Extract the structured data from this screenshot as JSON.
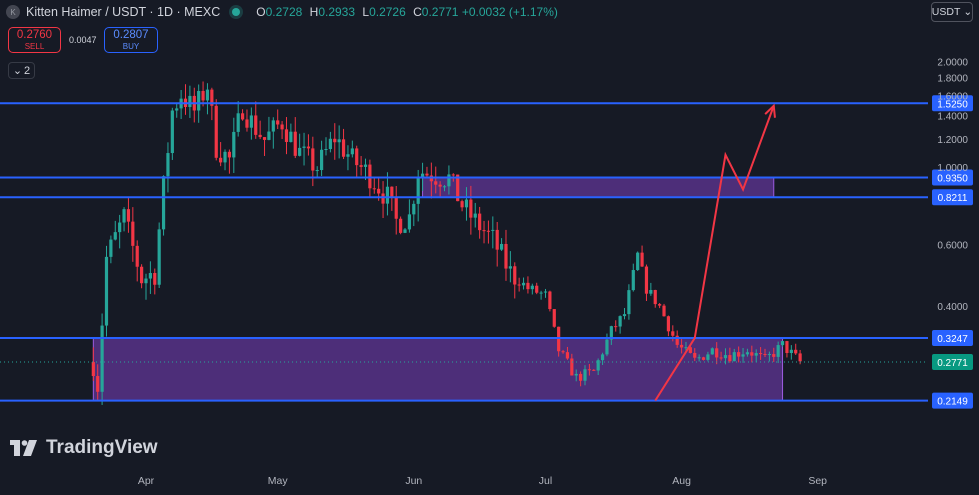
{
  "header": {
    "symbol_icon_letter": "K",
    "title": "Kitten Haimer / USDT · 1D · MEXC",
    "ohlc": {
      "o_label": "O",
      "o": "0.2728",
      "h_label": "H",
      "h": "0.2933",
      "l_label": "L",
      "l": "0.2726",
      "c_label": "C",
      "c": "0.2771",
      "change": "+0.0032 (+1.17%)"
    },
    "status_color": "#26a69a"
  },
  "trade": {
    "sell_price": "0.2760",
    "sell_label": "SELL",
    "spread": "0.0047",
    "buy_price": "0.2807",
    "buy_label": "BUY"
  },
  "indicators": {
    "count": "2"
  },
  "currency": {
    "label": "USDT"
  },
  "branding": {
    "name": "TradingView"
  },
  "colors": {
    "up": "#26a69a",
    "down": "#f23645",
    "line": "#2962ff",
    "zone": "#7b3fbf",
    "arrow": "#f23645",
    "background": "#161a25"
  },
  "chart_data": {
    "type": "candlestick",
    "y_scale": "log",
    "ylim": [
      0.195,
      2.1
    ],
    "y_ticks": [
      "2.0000",
      "1.8000",
      "1.6000",
      "1.4000",
      "1.2000",
      "1.0000",
      "0.6000",
      "0.4000"
    ],
    "x_ticks": [
      {
        "label": "Apr",
        "date": "2024-04-01"
      },
      {
        "label": "May",
        "date": "2024-05-01"
      },
      {
        "label": "Jun",
        "date": "2024-06-01"
      },
      {
        "label": "Jul",
        "date": "2024-07-01"
      },
      {
        "label": "Aug",
        "date": "2024-08-01"
      },
      {
        "label": "Sep",
        "date": "2024-09-01"
      }
    ],
    "first_date": "2024-03-20",
    "last_date": "2024-08-28",
    "horizontal_lines": [
      {
        "price": 1.525,
        "label": "1.5250"
      },
      {
        "price": 0.935,
        "label": "0.9350"
      },
      {
        "price": 0.8211,
        "label": "0.8211"
      },
      {
        "price": 0.3247,
        "label": "0.3247"
      },
      {
        "price": 0.2149,
        "label": "0.2149"
      }
    ],
    "current_price": {
      "price": 0.2771,
      "label": "0.2771"
    },
    "zones": [
      {
        "from_date": "2024-03-20",
        "to_date": "2024-08-24",
        "low": 0.2149,
        "high": 0.3247
      },
      {
        "from_date": "2024-06-03",
        "to_date": "2024-08-22",
        "low": 0.8211,
        "high": 0.935
      }
    ],
    "projection_path": [
      {
        "date": "2024-07-26",
        "price": 0.2149
      },
      {
        "date": "2024-08-04",
        "price": 0.3247
      },
      {
        "date": "2024-08-11",
        "price": 1.086
      },
      {
        "date": "2024-08-15",
        "price": 0.864
      },
      {
        "date": "2024-08-22",
        "price": 1.5
      }
    ],
    "anchors": [
      [
        "2024-03-21",
        0.24
      ],
      [
        "2024-03-23",
        0.55
      ],
      [
        "2024-03-27",
        0.72
      ],
      [
        "2024-03-31",
        0.48
      ],
      [
        "2024-04-03",
        0.5
      ],
      [
        "2024-04-05",
        0.88
      ],
      [
        "2024-04-07",
        1.45
      ],
      [
        "2024-04-09",
        1.62
      ],
      [
        "2024-04-12",
        1.45
      ],
      [
        "2024-04-15",
        1.72
      ],
      [
        "2024-04-17",
        1.15
      ],
      [
        "2024-04-20",
        1.05
      ],
      [
        "2024-04-23",
        1.5
      ],
      [
        "2024-04-25",
        1.35
      ],
      [
        "2024-04-28",
        1.2
      ],
      [
        "2024-05-02",
        1.35
      ],
      [
        "2024-05-06",
        1.1
      ],
      [
        "2024-05-10",
        1.0
      ],
      [
        "2024-05-14",
        1.22
      ],
      [
        "2024-05-18",
        1.05
      ],
      [
        "2024-05-22",
        0.95
      ],
      [
        "2024-05-26",
        0.82
      ],
      [
        "2024-05-28",
        0.7
      ],
      [
        "2024-05-31",
        0.72
      ],
      [
        "2024-06-02",
        0.98
      ],
      [
        "2024-06-06",
        0.95
      ],
      [
        "2024-06-09",
        0.93
      ],
      [
        "2024-06-12",
        0.78
      ],
      [
        "2024-06-15",
        0.7
      ],
      [
        "2024-06-19",
        0.62
      ],
      [
        "2024-06-23",
        0.5
      ],
      [
        "2024-06-27",
        0.45
      ],
      [
        "2024-07-01",
        0.43
      ],
      [
        "2024-07-04",
        0.3
      ],
      [
        "2024-07-08",
        0.25
      ],
      [
        "2024-07-12",
        0.26
      ],
      [
        "2024-07-16",
        0.34
      ],
      [
        "2024-07-19",
        0.38
      ],
      [
        "2024-07-22",
        0.56
      ],
      [
        "2024-07-24",
        0.45
      ],
      [
        "2024-07-27",
        0.4
      ],
      [
        "2024-07-31",
        0.31
      ],
      [
        "2024-08-04",
        0.28
      ],
      [
        "2024-08-08",
        0.3
      ],
      [
        "2024-08-12",
        0.29
      ],
      [
        "2024-08-16",
        0.3
      ],
      [
        "2024-08-20",
        0.28
      ],
      [
        "2024-08-24",
        0.31
      ],
      [
        "2024-08-28",
        0.2771
      ]
    ]
  }
}
